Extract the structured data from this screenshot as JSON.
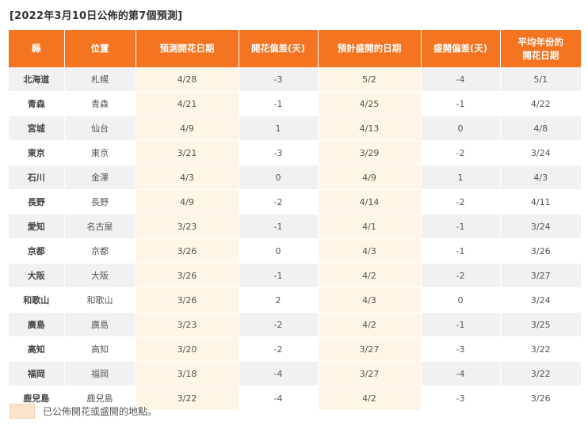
{
  "heading": "[2022年3月10日公佈的第7個預測]",
  "colors": {
    "header_bg": "#f47421",
    "highlight_bg": "#fdf5e5",
    "legend_swatch": "#fde3cc",
    "row_alt": "#f1f1f1"
  },
  "table": {
    "headers": [
      "縣",
      "位置",
      "預測開花日期",
      "開花偏差(天)",
      "預計盛開的日期",
      "盛開偏差(天)",
      "平均年份的\n開花日期"
    ],
    "rows": [
      {
        "pref": "北海道",
        "loc": "札幌",
        "bloom": "4/28",
        "bloom_dev": "-3",
        "full": "5/2",
        "full_dev": "-4",
        "avg": "5/1",
        "hl": true
      },
      {
        "pref": "青森",
        "loc": "青森",
        "bloom": "4/21",
        "bloom_dev": "-1",
        "full": "4/25",
        "full_dev": "-1",
        "avg": "4/22",
        "hl": true
      },
      {
        "pref": "宮城",
        "loc": "仙台",
        "bloom": "4/9",
        "bloom_dev": "1",
        "full": "4/13",
        "full_dev": "0",
        "avg": "4/8",
        "hl": true
      },
      {
        "pref": "東京",
        "loc": "東京",
        "bloom": "3/21",
        "bloom_dev": "-3",
        "full": "3/29",
        "full_dev": "-2",
        "avg": "3/24",
        "hl": true
      },
      {
        "pref": "石川",
        "loc": "金澤",
        "bloom": "4/3",
        "bloom_dev": "0",
        "full": "4/9",
        "full_dev": "1",
        "avg": "4/3",
        "hl": true
      },
      {
        "pref": "長野",
        "loc": "長野",
        "bloom": "4/9",
        "bloom_dev": "-2",
        "full": "4/14",
        "full_dev": "-2",
        "avg": "4/11",
        "hl": true
      },
      {
        "pref": "愛知",
        "loc": "名古屋",
        "bloom": "3/23",
        "bloom_dev": "-1",
        "full": "4/1",
        "full_dev": "-1",
        "avg": "3/24",
        "hl": true
      },
      {
        "pref": "京都",
        "loc": "京都",
        "bloom": "3/26",
        "bloom_dev": "0",
        "full": "4/3",
        "full_dev": "-1",
        "avg": "3/26",
        "hl": true
      },
      {
        "pref": "大阪",
        "loc": "大阪",
        "bloom": "3/26",
        "bloom_dev": "-1",
        "full": "4/2",
        "full_dev": "-2",
        "avg": "3/27",
        "hl": true
      },
      {
        "pref": "和歌山",
        "loc": "和歌山",
        "bloom": "3/26",
        "bloom_dev": "2",
        "full": "4/3",
        "full_dev": "0",
        "avg": "3/24",
        "hl": true
      },
      {
        "pref": "廣島",
        "loc": "廣島",
        "bloom": "3/23",
        "bloom_dev": "-2",
        "full": "4/2",
        "full_dev": "-1",
        "avg": "3/25",
        "hl": true
      },
      {
        "pref": "高知",
        "loc": "高知",
        "bloom": "3/20",
        "bloom_dev": "-2",
        "full": "3/27",
        "full_dev": "-3",
        "avg": "3/22",
        "hl": true
      },
      {
        "pref": "福岡",
        "loc": "福岡",
        "bloom": "3/18",
        "bloom_dev": "-4",
        "full": "3/27",
        "full_dev": "-4",
        "avg": "3/22",
        "hl": true
      },
      {
        "pref": "鹿兒島",
        "loc": "鹿兒島",
        "bloom": "3/22",
        "bloom_dev": "-4",
        "full": "4/2",
        "full_dev": "-3",
        "avg": "3/26",
        "hl": true
      }
    ]
  },
  "legend": {
    "text": "已公佈開花或盛開的地點。"
  }
}
